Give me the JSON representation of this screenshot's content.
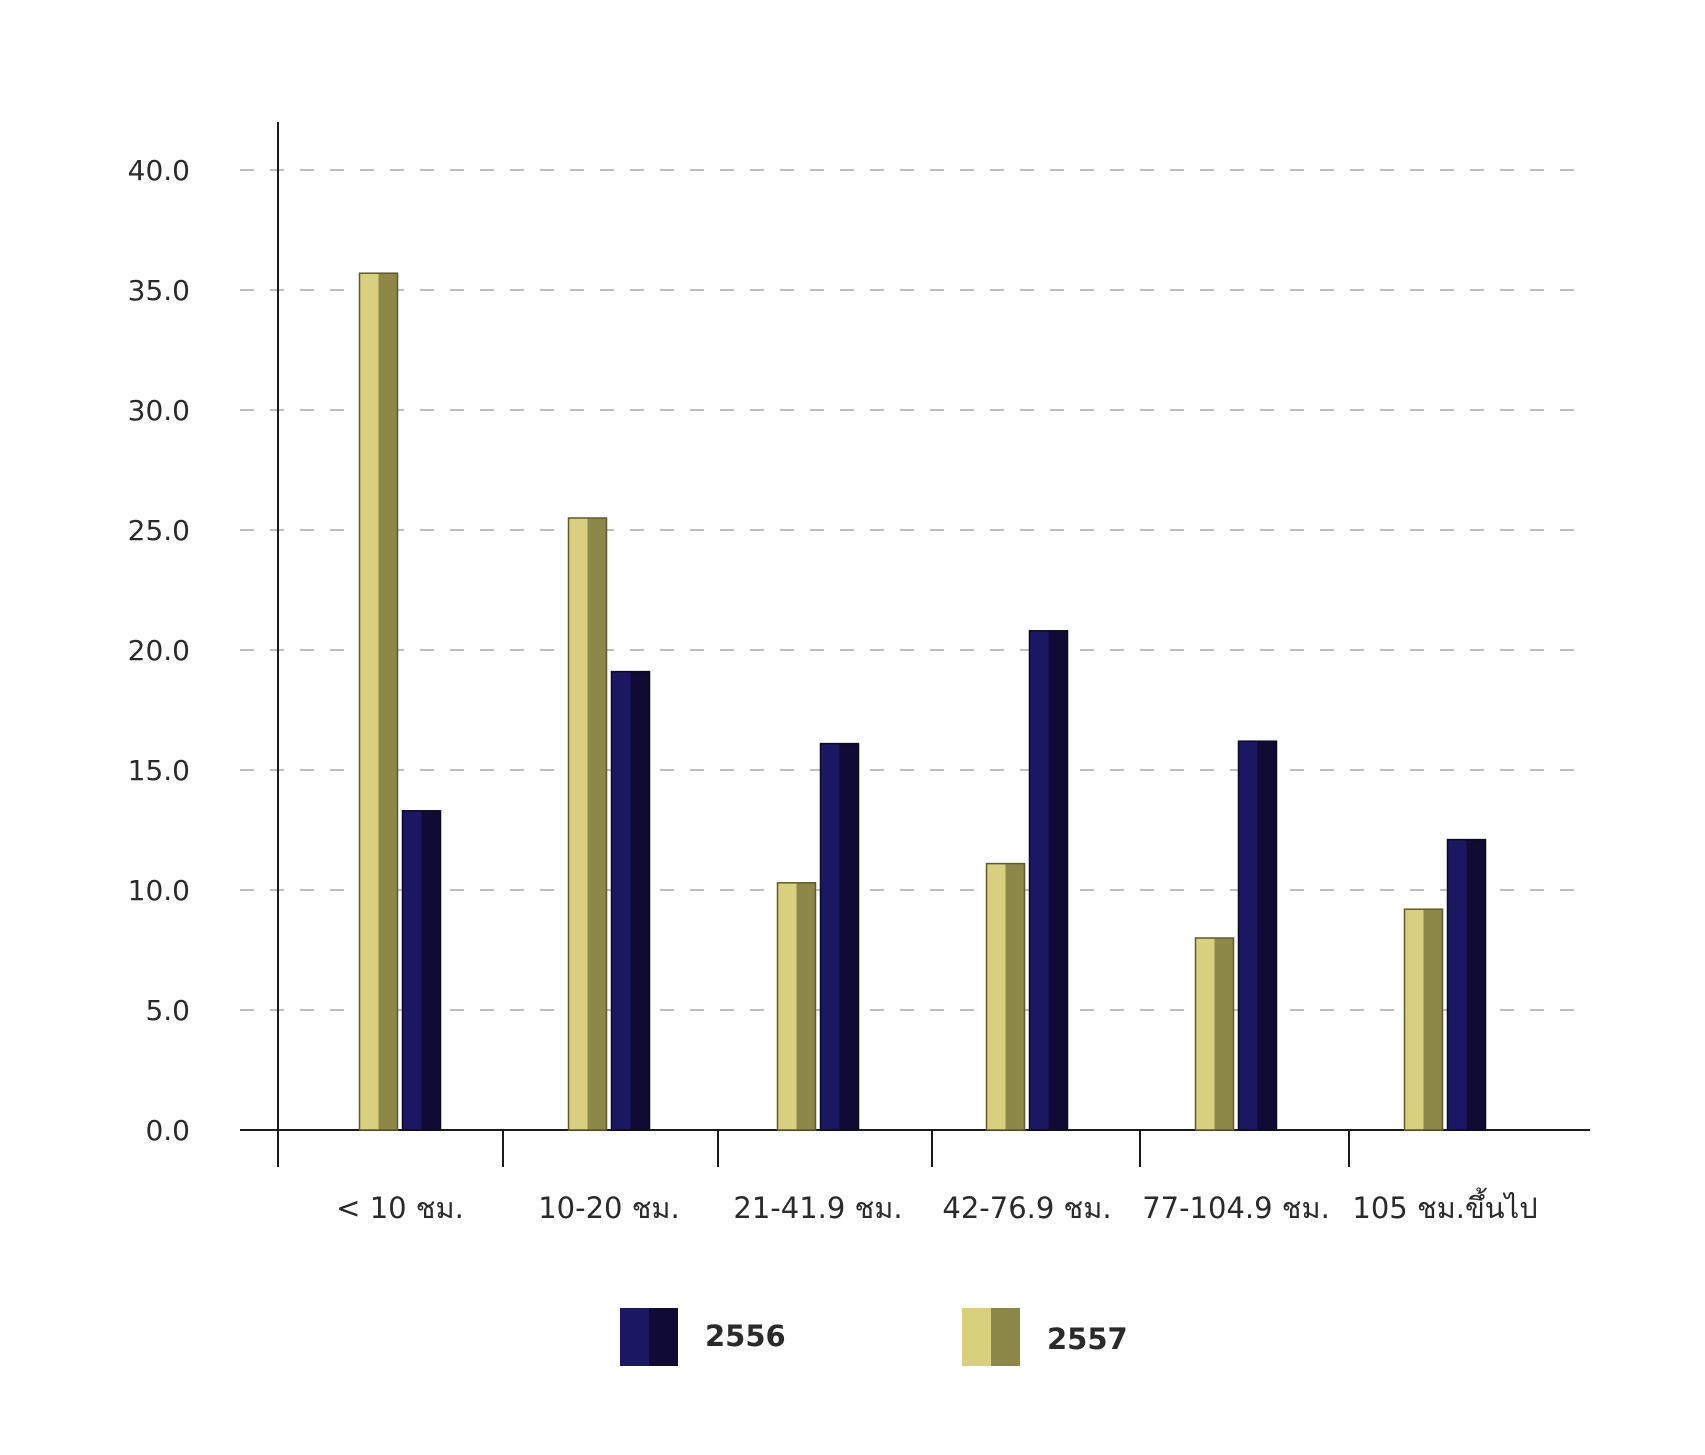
{
  "chart_data": {
    "type": "bar",
    "categories": [
      "< 10 ชม.",
      "10-20 ชม.",
      "21-41.9 ชม.",
      "42-76.9 ชม.",
      "77-104.9 ชม.",
      "105 ชม.ขึ้นไป"
    ],
    "series": [
      {
        "name": "2557",
        "values": [
          35.7,
          25.5,
          10.3,
          11.1,
          8.0,
          9.2
        ],
        "color_light": "#d9d07f",
        "color_dark": "#8e8848"
      },
      {
        "name": "2556",
        "values": [
          13.3,
          19.1,
          16.1,
          20.8,
          16.2,
          12.1
        ],
        "color_light": "#1c1762",
        "color_dark": "#100b35"
      }
    ],
    "ylim": [
      0,
      40
    ],
    "yticks": [
      "0.0",
      "5.0",
      "10.0",
      "15.0",
      "20.0",
      "25.0",
      "30.0",
      "35.0",
      "40.0"
    ],
    "grid": true,
    "legend": {
      "placement": "bottom",
      "items": [
        {
          "label": "2556",
          "series": 1
        },
        {
          "label": "2557",
          "series": 0
        }
      ]
    }
  }
}
